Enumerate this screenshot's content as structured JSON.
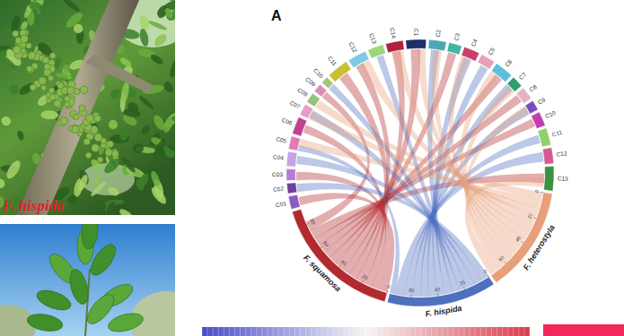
{
  "panel_label": "A",
  "photo_caption": "F. hispida",
  "chart_data": {
    "type": "circos",
    "genomes": [
      {
        "name": "F. heterostyla",
        "color": "#e8a07a",
        "size": 74,
        "ticks": [
          0,
          20,
          40,
          60
        ]
      },
      {
        "name": "F. hispida",
        "color": "#4f6fbf",
        "size": 76,
        "ticks": [
          0,
          20,
          40,
          60
        ]
      },
      {
        "name": "F. squamosa",
        "color": "#b22a2e",
        "size": 92,
        "ticks": [
          0,
          20,
          40,
          60,
          80
        ]
      }
    ],
    "segments": [
      {
        "name": "C01",
        "color": "#8a5cc2",
        "size": 9
      },
      {
        "name": "C02",
        "color": "#6d3fa0",
        "size": 7
      },
      {
        "name": "C03",
        "color": "#b07cd6",
        "size": 8
      },
      {
        "name": "C04",
        "color": "#c4a3e3",
        "size": 10
      },
      {
        "name": "C05",
        "color": "#e07bb5",
        "size": 9
      },
      {
        "name": "C06",
        "color": "#c2428f",
        "size": 12
      },
      {
        "name": "C07",
        "color": "#e89cc9",
        "size": 8
      },
      {
        "name": "C08",
        "color": "#93c47d",
        "size": 7
      },
      {
        "name": "C09",
        "color": "#d98fb5",
        "size": 6
      },
      {
        "name": "C10",
        "color": "#a0c878",
        "size": 5
      },
      {
        "name": "C11",
        "color": "#c8c032",
        "size": 15
      },
      {
        "name": "C12",
        "color": "#7ec8e3",
        "size": 13
      },
      {
        "name": "C13",
        "color": "#9bd67a",
        "size": 11
      },
      {
        "name": "C14",
        "color": "#b0203a",
        "size": 12
      },
      {
        "name": "C1",
        "color": "#1f2d6b",
        "size": 14
      },
      {
        "name": "C2",
        "color": "#4aa8b5",
        "size": 12
      },
      {
        "name": "C3",
        "color": "#3cb8a0",
        "size": 9
      },
      {
        "name": "C4",
        "color": "#c9406a",
        "size": 11
      },
      {
        "name": "C5",
        "color": "#e5a0b8",
        "size": 10
      },
      {
        "name": "C6",
        "color": "#5bc0de",
        "size": 13
      },
      {
        "name": "C7",
        "color": "#2e9e6a",
        "size": 8
      },
      {
        "name": "C8",
        "color": "#e7b3c5",
        "size": 9
      },
      {
        "name": "C9",
        "color": "#7b4fb8",
        "size": 7
      },
      {
        "name": "C10",
        "color": "#c23fb0",
        "size": 10
      },
      {
        "name": "C11",
        "color": "#8fd16a",
        "size": 12
      },
      {
        "name": "C12",
        "color": "#d65a8f",
        "size": 11
      },
      {
        "name": "C13",
        "color": "#3e8f3e",
        "size": 17
      }
    ],
    "links": [
      {
        "from": "F. squamosa",
        "from_range": [
          0,
          6
        ],
        "to": 0,
        "to_range": [
          1,
          7
        ]
      },
      {
        "from": "F. squamosa",
        "from_range": [
          6,
          12
        ],
        "to": 2,
        "to_range": [
          0,
          6
        ]
      },
      {
        "from": "F. squamosa",
        "from_range": [
          12,
          18
        ],
        "to": 5,
        "to_range": [
          3,
          9
        ]
      },
      {
        "from": "F. squamosa",
        "from_range": [
          18,
          25
        ],
        "to": 10,
        "to_range": [
          4,
          11
        ]
      },
      {
        "from": "F. squamosa",
        "from_range": [
          25,
          31
        ],
        "to": 11,
        "to_range": [
          2,
          8
        ]
      },
      {
        "from": "F. squamosa",
        "from_range": [
          31,
          37
        ],
        "to": 13,
        "to_range": [
          3,
          9
        ]
      },
      {
        "from": "F. squamosa",
        "from_range": [
          37,
          44
        ],
        "to": 14,
        "to_range": [
          3,
          10
        ]
      },
      {
        "from": "F. squamosa",
        "from_range": [
          44,
          50
        ],
        "to": 16,
        "to_range": [
          1,
          7
        ]
      },
      {
        "from": "F. squamosa",
        "from_range": [
          50,
          56
        ],
        "to": 19,
        "to_range": [
          4,
          10
        ]
      },
      {
        "from": "F. squamosa",
        "from_range": [
          56,
          62
        ],
        "to": 21,
        "to_range": [
          1,
          7
        ]
      },
      {
        "from": "F. squamosa",
        "from_range": [
          62,
          68
        ],
        "to": 23,
        "to_range": [
          2,
          8
        ]
      },
      {
        "from": "F. squamosa",
        "from_range": [
          68,
          75
        ],
        "to": 26,
        "to_range": [
          5,
          12
        ]
      },
      {
        "from": "F. squamosa",
        "from_range": [
          75,
          82
        ],
        "to": 8,
        "to_range": [
          0,
          5
        ]
      },
      {
        "from": "F. hispida",
        "from_range": [
          0,
          6
        ],
        "to": 1,
        "to_range": [
          0,
          6
        ]
      },
      {
        "from": "F. hispida",
        "from_range": [
          6,
          12
        ],
        "to": 3,
        "to_range": [
          2,
          8
        ]
      },
      {
        "from": "F. hispida",
        "from_range": [
          12,
          18
        ],
        "to": 6,
        "to_range": [
          1,
          7
        ]
      },
      {
        "from": "F. hispida",
        "from_range": [
          18,
          24
        ],
        "to": 9,
        "to_range": [
          0,
          5
        ]
      },
      {
        "from": "F. hispida",
        "from_range": [
          24,
          29
        ],
        "to": 12,
        "to_range": [
          4,
          9
        ]
      },
      {
        "from": "F. hispida",
        "from_range": [
          29,
          35
        ],
        "to": 15,
        "to_range": [
          2,
          8
        ]
      },
      {
        "from": "F. hispida",
        "from_range": [
          35,
          41
        ],
        "to": 17,
        "to_range": [
          2,
          8
        ]
      },
      {
        "from": "F. hispida",
        "from_range": [
          41,
          47
        ],
        "to": 18,
        "to_range": [
          3,
          9
        ]
      },
      {
        "from": "F. hispida",
        "from_range": [
          47,
          53
        ],
        "to": 20,
        "to_range": [
          0,
          6
        ]
      },
      {
        "from": "F. hispida",
        "from_range": [
          53,
          59
        ],
        "to": 22,
        "to_range": [
          1,
          7
        ]
      },
      {
        "from": "F. hispida",
        "from_range": [
          59,
          65
        ],
        "to": 24,
        "to_range": [
          3,
          9
        ]
      },
      {
        "from": "F. hispida",
        "from_range": [
          65,
          72
        ],
        "to": 25,
        "to_range": [
          2,
          9
        ]
      },
      {
        "from": "F. hispida",
        "from_range": [
          72,
          76
        ],
        "to": 4,
        "to_range": [
          0,
          4
        ]
      },
      {
        "from": "F. heterostyla",
        "from_range": [
          0,
          6
        ],
        "to": 7,
        "to_range": [
          0,
          6
        ]
      },
      {
        "from": "F. heterostyla",
        "from_range": [
          6,
          12
        ],
        "to": 4,
        "to_range": [
          3,
          9
        ]
      },
      {
        "from": "F. heterostyla",
        "from_range": [
          12,
          18
        ],
        "to": 6,
        "to_range": [
          0,
          6
        ]
      },
      {
        "from": "F. heterostyla",
        "from_range": [
          18,
          25
        ],
        "to": 11,
        "to_range": [
          6,
          13
        ]
      },
      {
        "from": "F. heterostyla",
        "from_range": [
          25,
          31
        ],
        "to": 13,
        "to_range": [
          5,
          11
        ]
      },
      {
        "from": "F. heterostyla",
        "from_range": [
          31,
          37
        ],
        "to": 14,
        "to_range": [
          8,
          14
        ]
      },
      {
        "from": "F. heterostyla",
        "from_range": [
          37,
          43
        ],
        "to": 15,
        "to_range": [
          4,
          10
        ]
      },
      {
        "from": "F. heterostyla",
        "from_range": [
          43,
          49
        ],
        "to": 17,
        "to_range": [
          0,
          6
        ]
      },
      {
        "from": "F. heterostyla",
        "from_range": [
          49,
          55
        ],
        "to": 19,
        "to_range": [
          0,
          6
        ]
      },
      {
        "from": "F. heterostyla",
        "from_range": [
          55,
          61
        ],
        "to": 20,
        "to_range": [
          2,
          8
        ]
      },
      {
        "from": "F. heterostyla",
        "from_range": [
          61,
          67
        ],
        "to": 22,
        "to_range": [
          0,
          6
        ]
      },
      {
        "from": "F. heterostyla",
        "from_range": [
          67,
          74
        ],
        "to": 26,
        "to_range": [
          8,
          15
        ]
      }
    ],
    "colorbar": {
      "colors": [
        "#4b4bc8",
        "#f5f5f5",
        "#d93a4a"
      ]
    },
    "legend_swatch": {
      "color": "#f2275a"
    }
  }
}
